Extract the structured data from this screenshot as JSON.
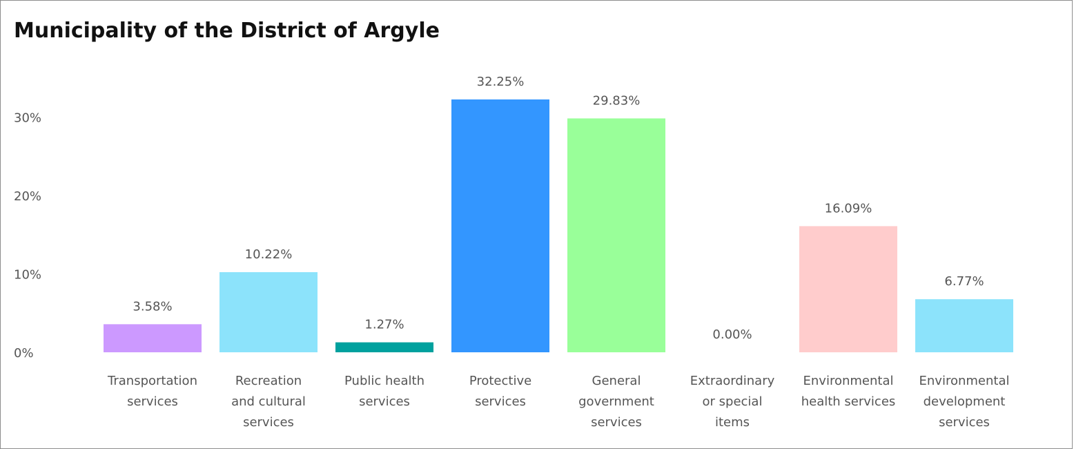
{
  "chart_data": {
    "type": "bar",
    "title": "Municipality of the District of Argyle",
    "xlabel": "",
    "ylabel": "",
    "ylim": [
      0,
      35
    ],
    "yticks": [
      "0%",
      "10%",
      "20%",
      "30%"
    ],
    "ytick_values": [
      0,
      10,
      20,
      30
    ],
    "grid": false,
    "legend": "none",
    "categories": [
      [
        "Transportation",
        "services"
      ],
      [
        "Recreation",
        "and cultural",
        "services"
      ],
      [
        "Public health",
        "services"
      ],
      [
        "Protective",
        "services"
      ],
      [
        "General",
        "government",
        "services"
      ],
      [
        "Extraordinary",
        "or special",
        "items"
      ],
      [
        "Environmental",
        "health services"
      ],
      [
        "Environmental",
        "development",
        "services"
      ]
    ],
    "values": [
      3.58,
      10.22,
      1.27,
      32.25,
      29.83,
      0.0,
      16.09,
      6.77
    ],
    "value_labels": [
      "3.58%",
      "10.22%",
      "1.27%",
      "32.25%",
      "29.83%",
      "0.00%",
      "16.09%",
      "6.77%"
    ],
    "colors": [
      "#cc99ff",
      "#8ce3fb",
      "#00a19e",
      "#3396ff",
      "#99ff99",
      "#cccccc",
      "#ffcccc",
      "#8ce3fb"
    ]
  }
}
